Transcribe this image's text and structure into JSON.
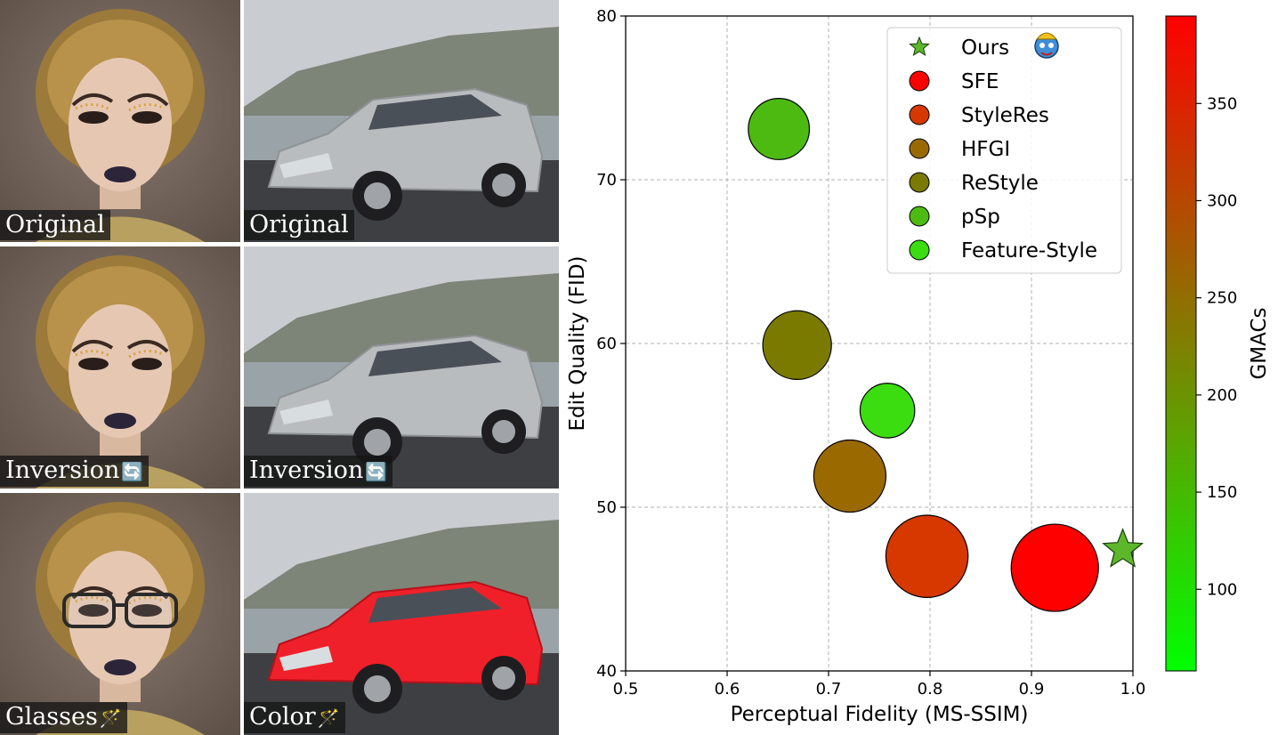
{
  "panels": [
    {
      "caption": "Original",
      "glyph": "",
      "kind": "face",
      "variant": "plain"
    },
    {
      "caption": "Original",
      "glyph": "",
      "kind": "car",
      "variant": "silver"
    },
    {
      "caption": "Inversion",
      "glyph": "🔄",
      "kind": "face",
      "variant": "plain"
    },
    {
      "caption": "Inversion",
      "glyph": "🔄",
      "kind": "car",
      "variant": "silver"
    },
    {
      "caption": "Glasses",
      "glyph": "🪄",
      "kind": "face",
      "variant": "glasses"
    },
    {
      "caption": "Color",
      "glyph": "🪄",
      "kind": "car",
      "variant": "red"
    }
  ],
  "chart_data": {
    "type": "scatter",
    "xlabel": "Perceptual Fidelity (MS-SSIM)",
    "ylabel": "Edit Quality (FID)",
    "xlim": [
      0.5,
      1.0
    ],
    "ylim": [
      40,
      80
    ],
    "xticks": [
      "0.5",
      "0.6",
      "0.7",
      "0.8",
      "0.9",
      "1.0"
    ],
    "yticks": [
      "40",
      "50",
      "60",
      "70",
      "80"
    ],
    "grid": true,
    "legend_position": "top-right",
    "points": [
      {
        "name": "Ours",
        "x": 0.99,
        "y": 47.4,
        "gmacs": 140,
        "marker": "star",
        "color": "#5cb82a"
      },
      {
        "name": "SFE",
        "x": 0.923,
        "y": 46.3,
        "gmacs": 395,
        "marker": "circle",
        "color": "#ff0000"
      },
      {
        "name": "StyleRes",
        "x": 0.797,
        "y": 47.0,
        "gmacs": 345,
        "marker": "circle",
        "color": "#d63800"
      },
      {
        "name": "HFGI",
        "x": 0.721,
        "y": 51.9,
        "gmacs": 245,
        "marker": "circle",
        "color": "#9a6a00"
      },
      {
        "name": "ReStyle",
        "x": 0.669,
        "y": 59.9,
        "gmacs": 210,
        "marker": "circle",
        "color": "#7a7a00"
      },
      {
        "name": "pSp",
        "x": 0.651,
        "y": 73.1,
        "gmacs": 135,
        "marker": "circle",
        "color": "#4dba12"
      },
      {
        "name": "Feature-Style",
        "x": 0.758,
        "y": 55.9,
        "gmacs": 70,
        "marker": "circle",
        "color": "#3bdc10"
      }
    ],
    "colorbar": {
      "label": "GMACs",
      "ticks": [
        "100",
        "150",
        "200",
        "250",
        "300",
        "350"
      ],
      "range": [
        58,
        395
      ],
      "color_low": "#00ff00",
      "color_high": "#ff0000"
    }
  }
}
